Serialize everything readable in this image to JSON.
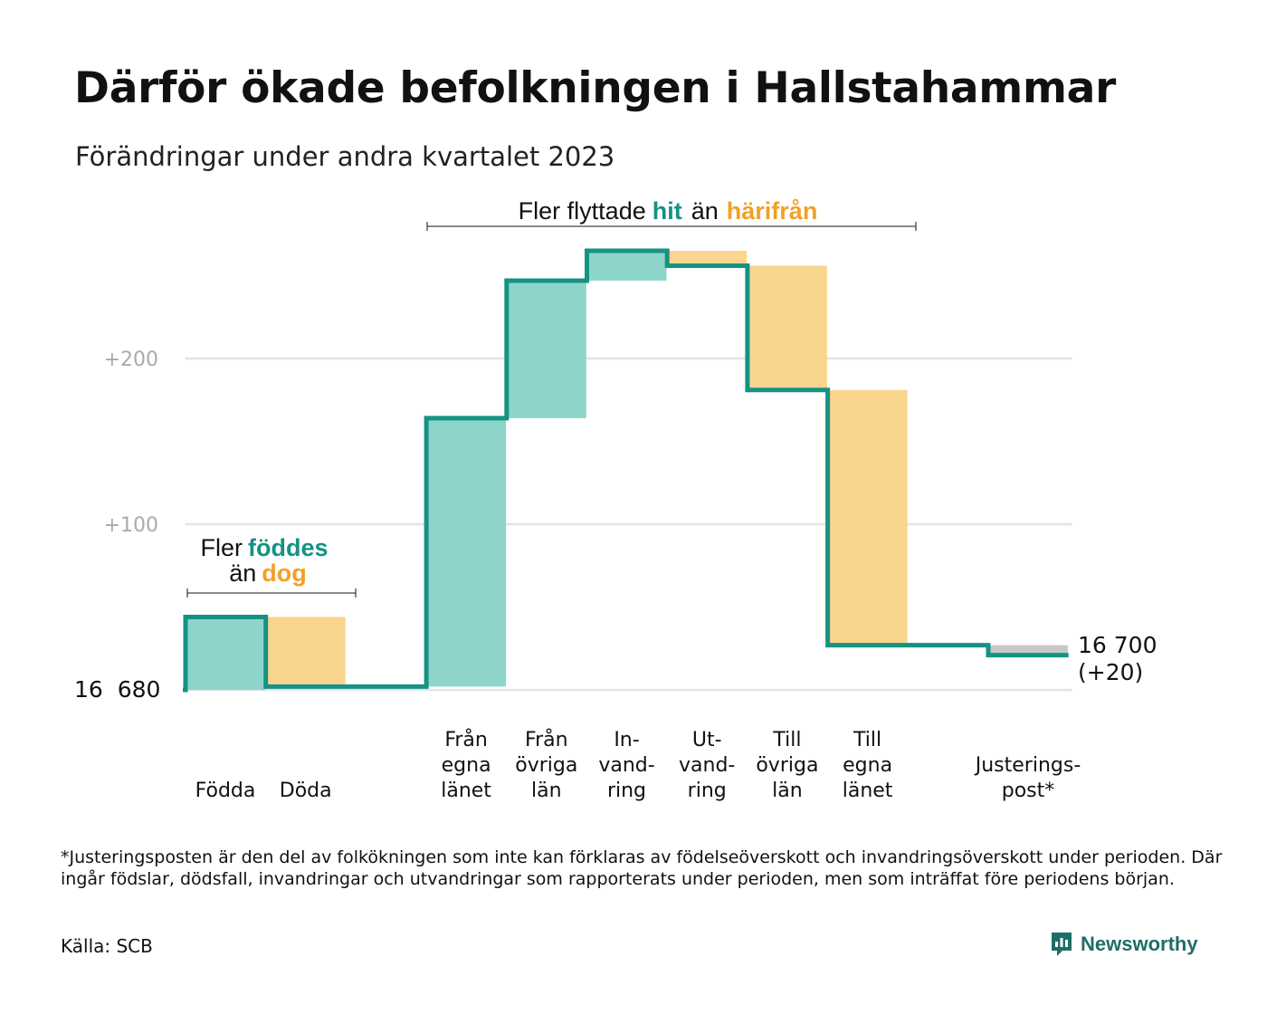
{
  "title": "Därför ökade befolkningen i Hallstahammar",
  "subtitle": "Förändringar under andra kvartalet 2023",
  "footnote": "*Justeringsposten är den del av folkökningen som inte kan förklaras av födelseöverskott och invandringsöverskott under perioden. Där ingår födslar, dödsfall, invandringar och utvandringar som rapporterats under perioden, men som inträffat före periodens början.",
  "source": "Källa: SCB",
  "brand": "Newsworthy",
  "colors": {
    "increase": "#8dd5cb",
    "decrease": "#fad58e",
    "adjustment": "#c8c8c8",
    "line": "#159284",
    "grid": "#e3e3e3",
    "teal_text": "#159284",
    "orange_text": "#f2a027",
    "tick_text": "#aaaaaa"
  },
  "annotations": {
    "natural": {
      "line1_plain": "Fler",
      "line1_accent": "föddes",
      "line2_plain": "än",
      "line2_accent": "dog"
    },
    "migration": {
      "plain1": "Fler flyttade",
      "accent1": "hit",
      "plain2": "än",
      "accent2": "härifrån"
    }
  },
  "end_label": {
    "value": "16 700",
    "change": "(+20)"
  },
  "chart_data": {
    "type": "waterfall",
    "start_value": 16680,
    "start_label": "16  680",
    "end_value": 16700,
    "y_ticks": [
      {
        "value": 0,
        "label": ""
      },
      {
        "value": 100,
        "label": "+100"
      },
      {
        "value": 200,
        "label": "+200"
      }
    ],
    "ylim": [
      0,
      265
    ],
    "grid": true,
    "steps": [
      {
        "label": [
          "Födda"
        ],
        "change": 44,
        "kind": "increase"
      },
      {
        "label": [
          "Döda"
        ],
        "change": -42,
        "kind": "decrease"
      },
      {
        "label": [],
        "change": 0,
        "kind": "gap"
      },
      {
        "label": [
          "Från",
          "egna",
          "länet"
        ],
        "change": 162,
        "kind": "increase"
      },
      {
        "label": [
          "Från",
          "övriga",
          "län"
        ],
        "change": 83,
        "kind": "increase"
      },
      {
        "label": [
          "In-",
          "vand-",
          "ring"
        ],
        "change": 18,
        "kind": "increase"
      },
      {
        "label": [
          "Ut-",
          "vand-",
          "ring"
        ],
        "change": -9,
        "kind": "decrease"
      },
      {
        "label": [
          "Till",
          "övriga",
          "län"
        ],
        "change": -75,
        "kind": "decrease"
      },
      {
        "label": [
          "Till",
          "egna",
          "länet"
        ],
        "change": -154,
        "kind": "decrease"
      },
      {
        "label": [],
        "change": 0,
        "kind": "gap"
      },
      {
        "label": [
          "Justerings-",
          "post*"
        ],
        "change": -6,
        "kind": "adjustment"
      }
    ]
  }
}
